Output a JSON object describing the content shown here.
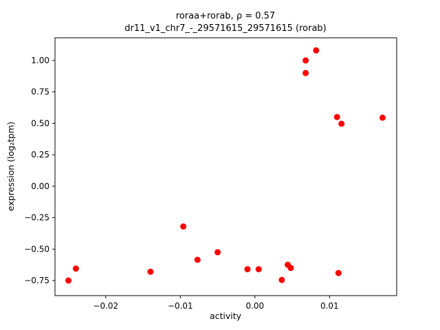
{
  "chart_data": {
    "type": "scatter",
    "title": "roraa+rorab, ρ = 0.57",
    "subtitle": "dr11_v1_chr7_-_29571615_29571615 (rorab)",
    "xlabel": "activity",
    "ylabel": "expression (log₂tpm)",
    "xlim": [
      -0.0268,
      0.019
    ],
    "ylim": [
      -0.87,
      1.18
    ],
    "xticks": [
      -0.02,
      -0.01,
      0.0,
      0.01
    ],
    "yticks": [
      -0.75,
      -0.5,
      -0.25,
      0.0,
      0.25,
      0.5,
      0.75,
      1.0
    ],
    "grid": false,
    "legend": "none",
    "marker": "circle",
    "marker_color": "#ff0000",
    "points": [
      [
        -0.025,
        -0.75
      ],
      [
        -0.024,
        -0.655
      ],
      [
        -0.014,
        -0.68
      ],
      [
        -0.0096,
        -0.32
      ],
      [
        -0.0077,
        -0.585
      ],
      [
        -0.005,
        -0.525
      ],
      [
        -0.001,
        -0.66
      ],
      [
        0.0005,
        -0.66
      ],
      [
        0.0036,
        -0.745
      ],
      [
        0.0044,
        -0.625
      ],
      [
        0.0048,
        -0.65
      ],
      [
        0.0068,
        1.0
      ],
      [
        0.0068,
        0.9
      ],
      [
        0.0082,
        1.08
      ],
      [
        0.011,
        0.55
      ],
      [
        0.0116,
        0.497
      ],
      [
        0.0112,
        -0.69
      ],
      [
        0.0171,
        0.545
      ]
    ]
  }
}
